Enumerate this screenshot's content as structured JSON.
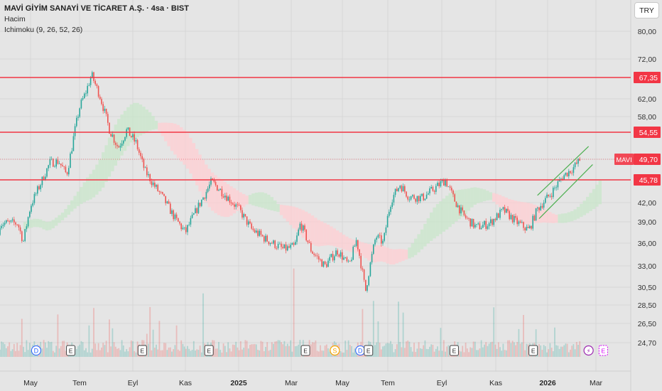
{
  "header": {
    "title": "MAVİ GİYİM SANAYİ VE TİCARET A.Ş. · 4sa · BIST",
    "line2": "Hacim",
    "line3": "Ichimoku (9, 26, 52, 26)"
  },
  "currency_button": "TRY",
  "colors": {
    "background": "#e5e5e5",
    "up": "#26a69a",
    "down": "#ef5350",
    "hline": "#f23645",
    "channel": "#4caf50",
    "cloud_bull": "#c8e6c9",
    "cloud_bear": "#ffcdd2",
    "grid": "#d6d6d6",
    "axis_text": "#333333"
  },
  "chart_data": {
    "type": "candlestick",
    "symbol": "MAVI",
    "timeframe": "4sa",
    "y_axis_ticks": [
      "80,00",
      "72,00",
      "67,35",
      "62,00",
      "58,00",
      "54,55",
      "49,70",
      "45,78",
      "42,00",
      "39,00",
      "36,00",
      "33,00",
      "30,50",
      "28,50",
      "26,50",
      "24,70"
    ],
    "x_axis_labels": [
      {
        "label": "May",
        "bold": false
      },
      {
        "label": "Tem",
        "bold": false
      },
      {
        "label": "Eyl",
        "bold": false
      },
      {
        "label": "Kas",
        "bold": false
      },
      {
        "label": "2025",
        "bold": true
      },
      {
        "label": "Mar",
        "bold": false
      },
      {
        "label": "May",
        "bold": false
      },
      {
        "label": "Tem",
        "bold": false
      },
      {
        "label": "Eyl",
        "bold": false
      },
      {
        "label": "Kas",
        "bold": false
      },
      {
        "label": "2026",
        "bold": true
      },
      {
        "label": "Mar",
        "bold": false
      }
    ],
    "horizontal_lines": [
      {
        "value": 67.35,
        "label": "67,35"
      },
      {
        "value": 54.55,
        "label": "54,55"
      },
      {
        "value": 45.78,
        "label": "45,78"
      }
    ],
    "last_price": {
      "value": 49.7,
      "label": "49,70",
      "ticker": "MAVI"
    },
    "price_path": [
      {
        "t": "2024-04-15",
        "v": 38.8
      },
      {
        "t": "2024-04-22",
        "v": 36.2
      },
      {
        "t": "2024-05-01",
        "v": 41.5
      },
      {
        "t": "2024-05-15",
        "v": 45.6
      },
      {
        "t": "2024-05-25",
        "v": 49.0
      },
      {
        "t": "2024-06-05",
        "v": 49.3
      },
      {
        "t": "2024-06-15",
        "v": 46.8
      },
      {
        "t": "2024-06-22",
        "v": 52.3
      },
      {
        "t": "2024-07-01",
        "v": 60.0
      },
      {
        "t": "2024-07-08",
        "v": 63.5
      },
      {
        "t": "2024-07-15",
        "v": 68.0
      },
      {
        "t": "2024-07-25",
        "v": 62.5
      },
      {
        "t": "2024-08-05",
        "v": 55.0
      },
      {
        "t": "2024-08-15",
        "v": 51.8
      },
      {
        "t": "2024-08-25",
        "v": 55.0
      },
      {
        "t": "2024-09-05",
        "v": 52.5
      },
      {
        "t": "2024-09-15",
        "v": 47.5
      },
      {
        "t": "2024-09-25",
        "v": 45.0
      },
      {
        "t": "2024-10-05",
        "v": 43.0
      },
      {
        "t": "2024-10-20",
        "v": 39.5
      },
      {
        "t": "2024-11-01",
        "v": 37.5
      },
      {
        "t": "2024-11-20",
        "v": 42.5
      },
      {
        "t": "2024-12-01",
        "v": 45.5
      },
      {
        "t": "2024-12-15",
        "v": 43.5
      },
      {
        "t": "2025-01-01",
        "v": 41.0
      },
      {
        "t": "2025-01-15",
        "v": 38.0
      },
      {
        "t": "2025-02-01",
        "v": 36.5
      },
      {
        "t": "2025-02-20",
        "v": 35.2
      },
      {
        "t": "2025-03-05",
        "v": 35.5
      },
      {
        "t": "2025-03-12",
        "v": 38.8
      },
      {
        "t": "2025-03-25",
        "v": 35.0
      },
      {
        "t": "2025-04-10",
        "v": 33.0
      },
      {
        "t": "2025-04-25",
        "v": 35.0
      },
      {
        "t": "2025-05-10",
        "v": 33.0
      },
      {
        "t": "2025-05-20",
        "v": 36.5
      },
      {
        "t": "2025-06-01",
        "v": 30.0
      },
      {
        "t": "2025-06-08",
        "v": 33.5
      },
      {
        "t": "2025-06-15",
        "v": 37.0
      },
      {
        "t": "2025-06-25",
        "v": 36.0
      },
      {
        "t": "2025-07-05",
        "v": 42.5
      },
      {
        "t": "2025-07-15",
        "v": 45.0
      },
      {
        "t": "2025-07-25",
        "v": 43.0
      },
      {
        "t": "2025-08-10",
        "v": 42.8
      },
      {
        "t": "2025-08-25",
        "v": 44.5
      },
      {
        "t": "2025-09-05",
        "v": 45.8
      },
      {
        "t": "2025-09-15",
        "v": 42.5
      },
      {
        "t": "2025-09-25",
        "v": 40.0
      },
      {
        "t": "2025-10-10",
        "v": 38.2
      },
      {
        "t": "2025-10-25",
        "v": 38.8
      },
      {
        "t": "2025-11-10",
        "v": 40.8
      },
      {
        "t": "2025-11-25",
        "v": 39.0
      },
      {
        "t": "2025-12-10",
        "v": 37.8
      },
      {
        "t": "2025-12-20",
        "v": 41.0
      },
      {
        "t": "2026-01-05",
        "v": 43.5
      },
      {
        "t": "2026-01-20",
        "v": 46.5
      },
      {
        "t": "2026-02-01",
        "v": 48.0
      },
      {
        "t": "2026-02-10",
        "v": 49.7
      }
    ],
    "channel": {
      "upper": [
        {
          "t": "2025-12-20",
          "v": 43.2
        },
        {
          "t": "2026-02-20",
          "v": 52.0
        }
      ],
      "lower": [
        {
          "t": "2025-12-22",
          "v": 39.5
        },
        {
          "t": "2026-02-25",
          "v": 48.7
        }
      ]
    },
    "event_markers": [
      {
        "t": "2024-05-08",
        "label": "D",
        "kind": "dividend"
      },
      {
        "t": "2024-06-20",
        "label": "E",
        "kind": "earnings"
      },
      {
        "t": "2024-09-12",
        "label": "E",
        "kind": "earnings"
      },
      {
        "t": "2024-11-28",
        "label": "E",
        "kind": "earnings"
      },
      {
        "t": "2025-03-18",
        "label": "E",
        "kind": "earnings"
      },
      {
        "t": "2025-04-22",
        "label": "S",
        "kind": "split"
      },
      {
        "t": "2025-05-25",
        "label": "D",
        "kind": "dividend"
      },
      {
        "t": "2025-06-05",
        "label": "E",
        "kind": "earnings"
      },
      {
        "t": "2025-09-15",
        "label": "E",
        "kind": "earnings"
      },
      {
        "t": "2025-12-15",
        "label": "E",
        "kind": "earnings"
      },
      {
        "t": "2026-02-20",
        "label": "⚡",
        "kind": "flash"
      },
      {
        "t": "2026-03-10",
        "label": "E",
        "kind": "earnings-upcoming"
      }
    ]
  }
}
